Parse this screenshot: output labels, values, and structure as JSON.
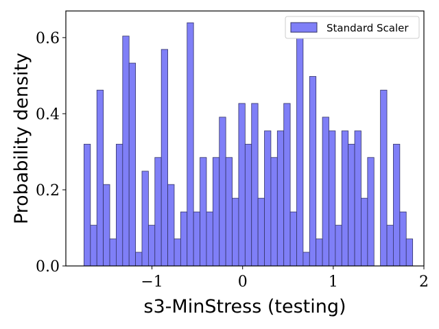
{
  "chart_data": {
    "type": "bar",
    "histogram": true,
    "xlabel": "s3-MinStress (testing)",
    "ylabel": "Probability density",
    "xlim": [
      -1.95,
      2.0
    ],
    "ylim": [
      0,
      0.67
    ],
    "xticks": [
      -1,
      0,
      1,
      2
    ],
    "xtick_labels": [
      "−1",
      "0",
      "1",
      "2"
    ],
    "yticks": [
      0.0,
      0.2,
      0.4,
      0.6
    ],
    "ytick_labels": [
      "0.0",
      "0.2",
      "0.4",
      "0.6"
    ],
    "grid": false,
    "legend_position": "top-right",
    "bin_start": -1.75,
    "bin_width": 0.0711,
    "series": [
      {
        "name": "Standard Scaler",
        "color": "#7f7ff7",
        "edge_color": "#333366",
        "values": [
          0.32,
          0.107,
          0.462,
          0.214,
          0.071,
          0.32,
          0.604,
          0.533,
          0.036,
          0.249,
          0.107,
          0.285,
          0.569,
          0.214,
          0.071,
          0.142,
          0.639,
          0.142,
          0.285,
          0.142,
          0.285,
          0.391,
          0.285,
          0.178,
          0.427,
          0.32,
          0.427,
          0.178,
          0.355,
          0.285,
          0.355,
          0.427,
          0.142,
          0.604,
          0.036,
          0.498,
          0.071,
          0.391,
          0.355,
          0.107,
          0.355,
          0.32,
          0.355,
          0.178,
          0.285,
          0.0,
          0.462,
          0.107,
          0.32,
          0.142,
          0.071
        ]
      }
    ]
  }
}
